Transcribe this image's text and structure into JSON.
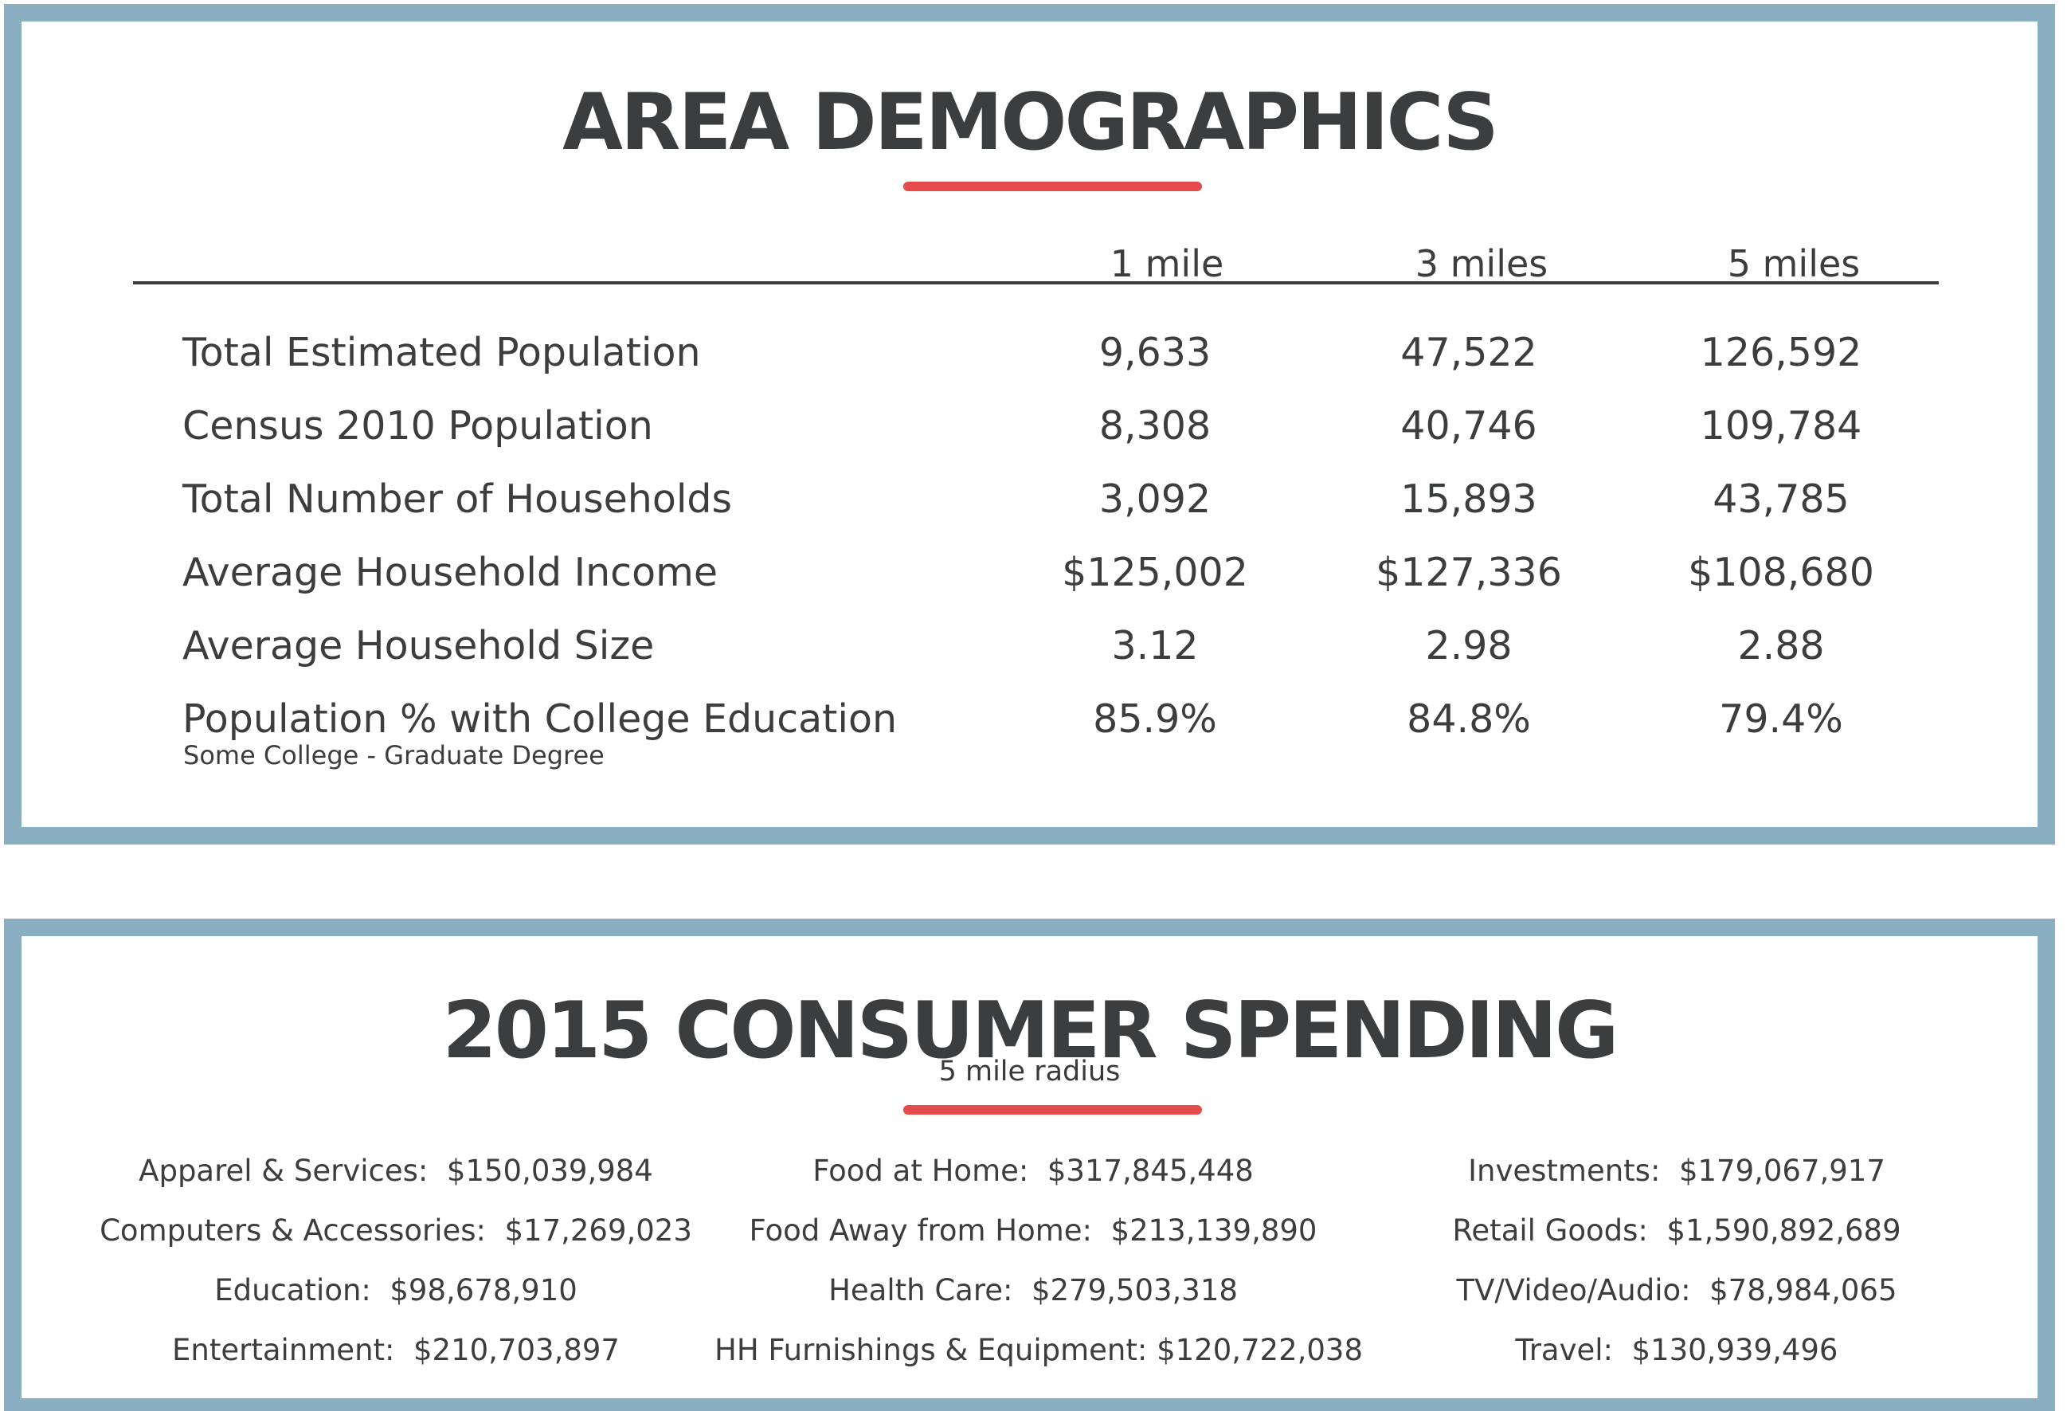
{
  "demographics": {
    "title": "AREA DEMOGRAPHICS",
    "columns": [
      "1 mile",
      "3 miles",
      "5 miles"
    ],
    "rows": [
      {
        "label": "Total Estimated Population",
        "values": [
          "9,633",
          "47,522",
          "126,592"
        ]
      },
      {
        "label": "Census 2010 Population",
        "values": [
          "8,308",
          "40,746",
          "109,784"
        ]
      },
      {
        "label": "Total Number of Households",
        "values": [
          "3,092",
          "15,893",
          "43,785"
        ]
      },
      {
        "label": "Average Household Income",
        "values": [
          "$125,002",
          "$127,336",
          "$108,680"
        ]
      },
      {
        "label": "Average Household Size",
        "values": [
          "3.12",
          "2.98",
          "2.88"
        ]
      },
      {
        "label": "Population % with College Education",
        "sublabel": "Some College - Graduate Degree",
        "values": [
          "85.9%",
          "84.8%",
          "79.4%"
        ]
      }
    ]
  },
  "spending": {
    "title": "2015 CONSUMER SPENDING",
    "subtitle": "5 mile radius",
    "columns": [
      [
        "Apparel & Services:  $150,039,984",
        "Computers & Accessories:  $17,269,023",
        "Education:  $98,678,910",
        "Entertainment:  $210,703,897"
      ],
      [
        "Food at Home:  $317,845,448",
        "Food Away from Home:  $213,139,890",
        "Health Care:  $279,503,318",
        "HH Furnishings & Equipment: $120,722,038"
      ],
      [
        "Investments:  $179,067,917",
        "Retail Goods:  $1,590,892,689",
        "TV/Video/Audio:  $78,984,065",
        "Travel:  $130,939,496"
      ]
    ]
  },
  "colors": {
    "frame": "#89afc0",
    "accent": "#e54a4c",
    "text": "#3c3d3f"
  }
}
